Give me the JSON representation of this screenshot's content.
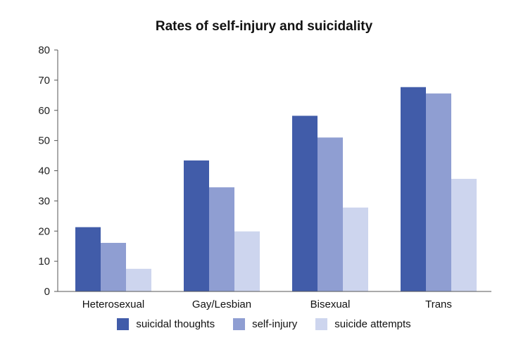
{
  "chart_data": {
    "type": "bar",
    "title": "Rates of self-injury and suicidality",
    "xlabel": "",
    "ylabel": "",
    "ylim": [
      0,
      80
    ],
    "yticks": [
      0,
      10,
      20,
      30,
      40,
      50,
      60,
      70,
      80
    ],
    "categories": [
      "Heterosexual",
      "Gay/Lesbian",
      "Bisexual",
      "Trans"
    ],
    "series": [
      {
        "name": "suicidal thoughts",
        "color": "#415ca9",
        "values": [
          21.3,
          43.4,
          58.2,
          67.7
        ]
      },
      {
        "name": "self-injury",
        "color": "#8f9ed2",
        "values": [
          16.1,
          34.5,
          51.0,
          65.6
        ]
      },
      {
        "name": "suicide attempts",
        "color": "#cdd5ee",
        "values": [
          7.5,
          19.9,
          27.8,
          37.3
        ]
      }
    ],
    "grid": false,
    "legend_position": "bottom"
  }
}
